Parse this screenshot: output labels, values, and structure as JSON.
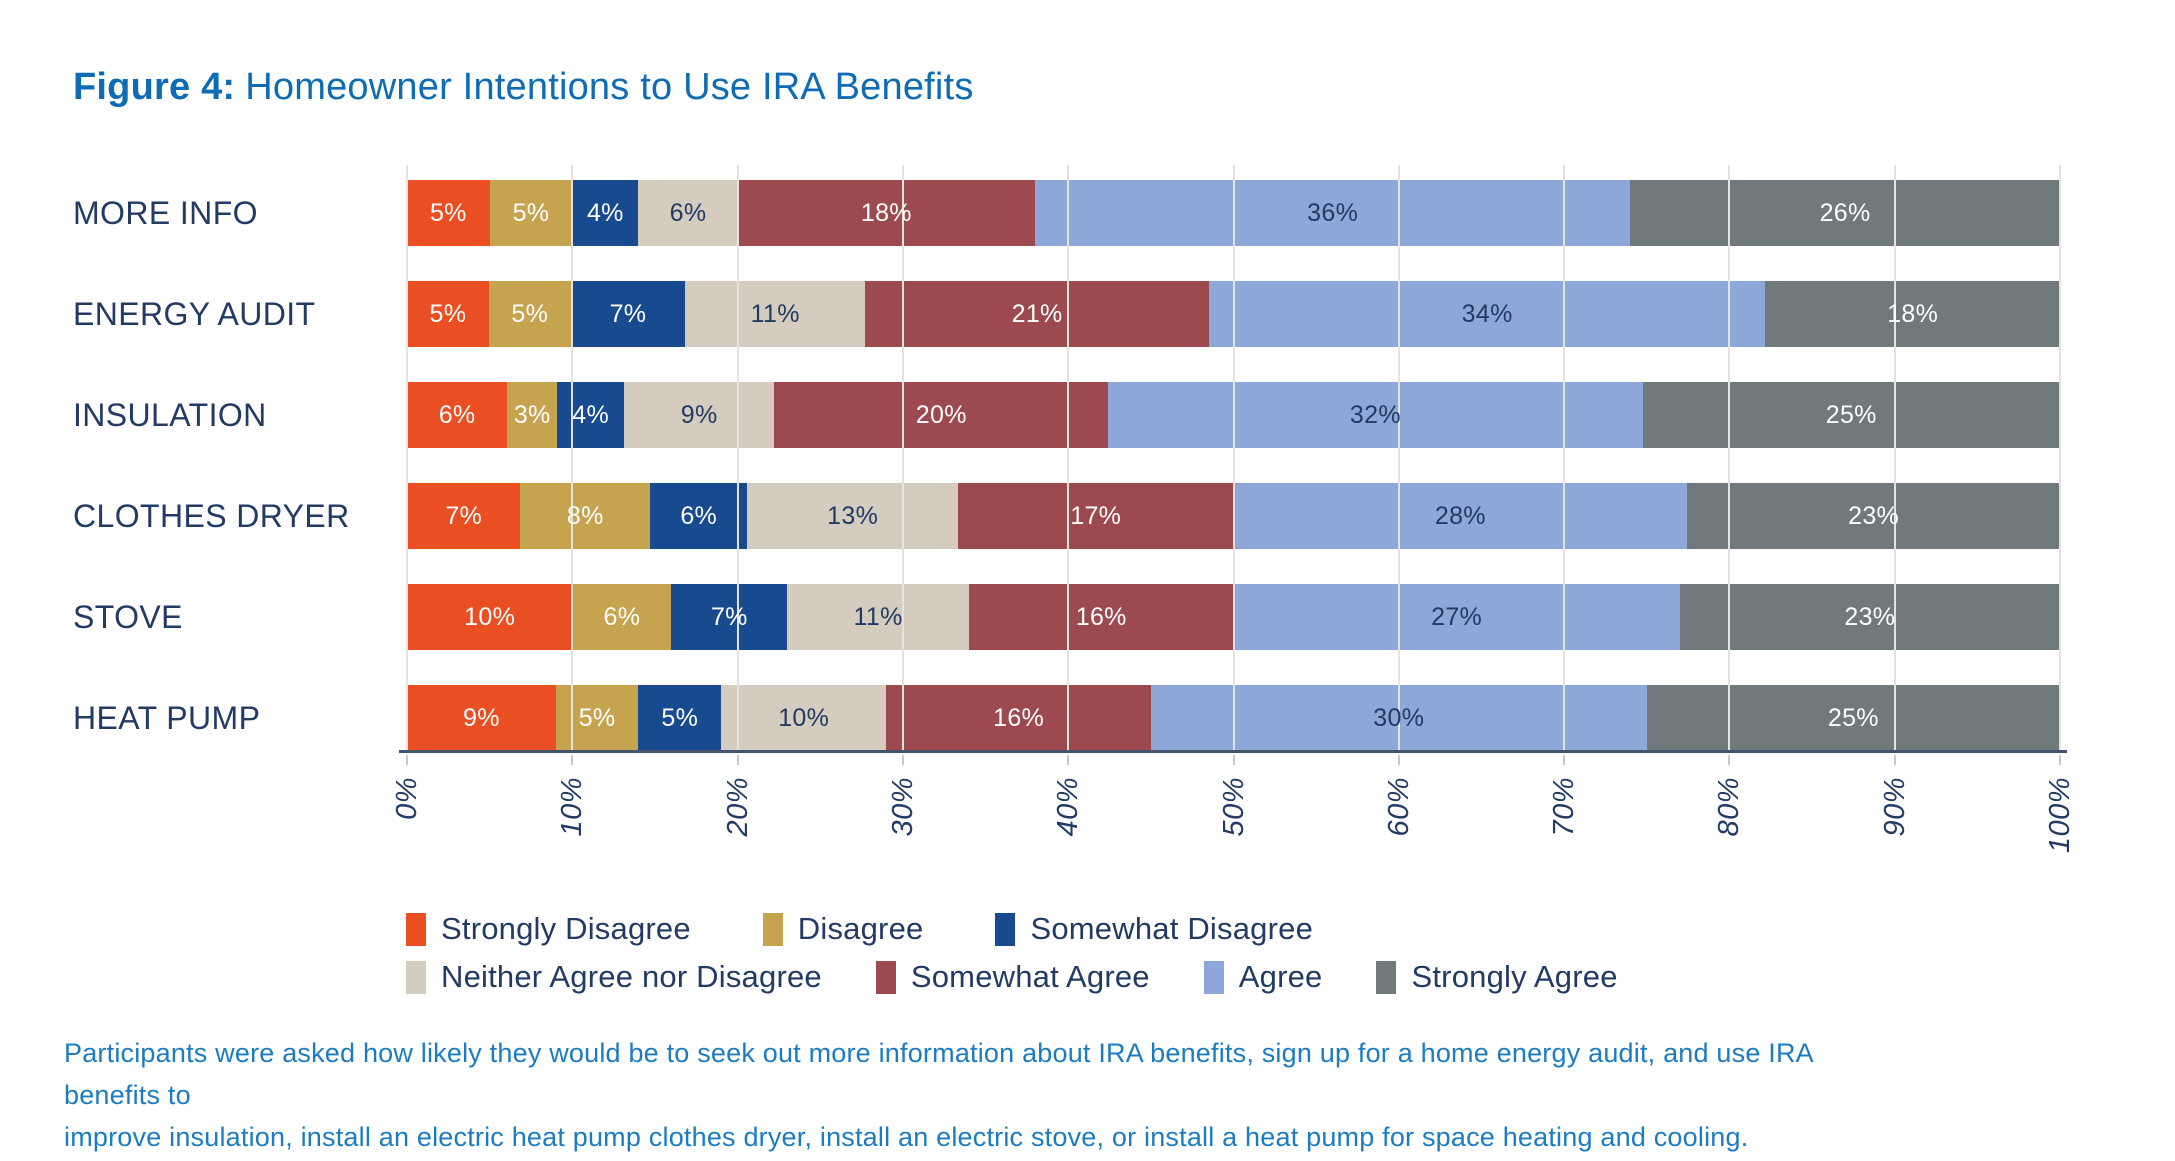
{
  "figure": {
    "title_prefix": "Figure 4:",
    "title": "Homeowner Intentions to Use IRA Benefits",
    "caption": {
      "line1": "Participants were asked how likely they would be to seek out more information about IRA benefits, sign up for a home energy audit, and use IRA benefits to",
      "line2": "improve insulation, install an electric heat pump clothes dryer, install an electric stove, or install a heat pump for space heating and cooling."
    }
  },
  "colors": {
    "title_blue": "#0E6CB5",
    "caption_blue": "#1C7CC2",
    "axis_text_navy": "#223A64",
    "axis_line": "#44546A",
    "gridline": "#E5E3DF",
    "background": "#FFFFFF"
  },
  "chart_data": {
    "type": "bar",
    "variant": "horizontal-stacked-100pct",
    "categories": [
      "MORE INFO",
      "ENERGY AUDIT",
      "INSULATION",
      "CLOTHES DRYER",
      "STOVE",
      "HEAT PUMP"
    ],
    "series": [
      {
        "name": "Strongly Disagree",
        "color": "#EA4E23",
        "text_color": "#FFFFFF",
        "values": [
          5,
          5,
          6,
          7,
          10,
          9
        ]
      },
      {
        "name": "Disagree",
        "color": "#C6A34E",
        "text_color": "#FFFFFF",
        "values": [
          5,
          5,
          3,
          8,
          6,
          5
        ]
      },
      {
        "name": "Somewhat Disagree",
        "color": "#174A8F",
        "text_color": "#FFFFFF",
        "values": [
          4,
          7,
          4,
          6,
          7,
          5
        ]
      },
      {
        "name": "Neither Agree nor Disagree",
        "color": "#D3CCBF",
        "text_color": "#223A64",
        "values": [
          6,
          11,
          9,
          13,
          11,
          10
        ]
      },
      {
        "name": "Somewhat Agree",
        "color": "#9C4A50",
        "text_color": "#FFFFFF",
        "values": [
          18,
          21,
          20,
          17,
          16,
          16
        ]
      },
      {
        "name": "Agree",
        "color": "#8CA7D8",
        "text_color": "#223A64",
        "values": [
          36,
          34,
          32,
          28,
          27,
          30
        ]
      },
      {
        "name": "Strongly Agree",
        "color": "#70797C",
        "text_color": "#FFFFFF",
        "values": [
          26,
          18,
          25,
          23,
          23,
          25
        ]
      }
    ],
    "value_suffix": "%",
    "x_ticks": [
      "0%",
      "10%",
      "20%",
      "30%",
      "40%",
      "50%",
      "60%",
      "70%",
      "80%",
      "90%",
      "100%"
    ],
    "xlim": [
      0,
      100
    ],
    "grid": true,
    "legend_position": "bottom",
    "legend_rows": [
      [
        0,
        1,
        2
      ],
      [
        3,
        4,
        5,
        6
      ]
    ]
  }
}
